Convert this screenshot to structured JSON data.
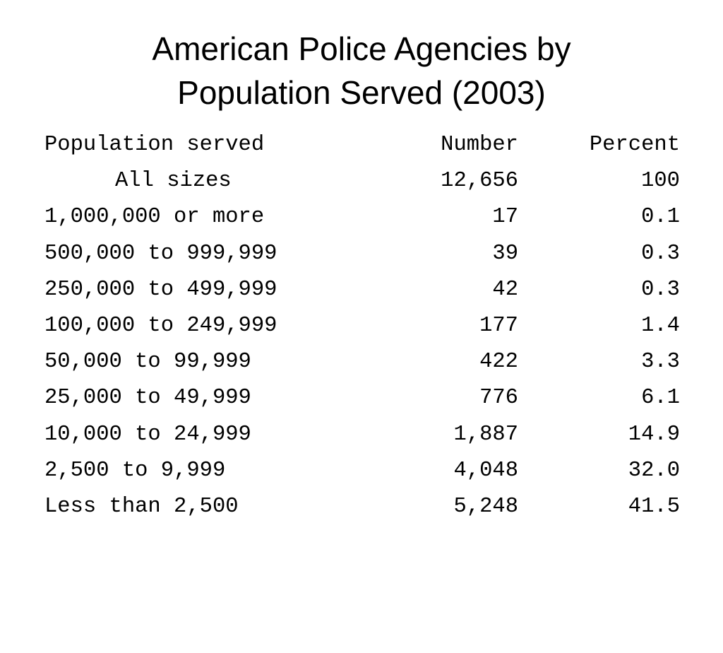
{
  "title": {
    "line1": "American Police Agencies by",
    "line2": "Population Served (2003)"
  },
  "table": {
    "headers": {
      "population": "Population served",
      "number": "Number",
      "percent": "Percent"
    },
    "rows": [
      {
        "population": "All sizes",
        "number": "12,656",
        "percent": "100"
      },
      {
        "population": "1,000,000 or more",
        "number": "17",
        "percent": "0.1"
      },
      {
        "population": "500,000 to 999,999",
        "number": "39",
        "percent": "0.3"
      },
      {
        "population": "250,000 to 499,999",
        "number": "42",
        "percent": "0.3"
      },
      {
        "population": "100,000 to 249,999",
        "number": "177",
        "percent": "1.4"
      },
      {
        "population": "50,000 to 99,999",
        "number": "422",
        "percent": "3.3"
      },
      {
        "population": "25,000 to 49,999",
        "number": "776",
        "percent": "6.1"
      },
      {
        "population": "10,000 to 24,999",
        "number": "1,887",
        "percent": "14.9"
      },
      {
        "population": "2,500 to 9,999",
        "number": "4,048",
        "percent": "32.0"
      },
      {
        "population": "Less than 2,500",
        "number": "5,248",
        "percent": "41.5"
      }
    ]
  }
}
